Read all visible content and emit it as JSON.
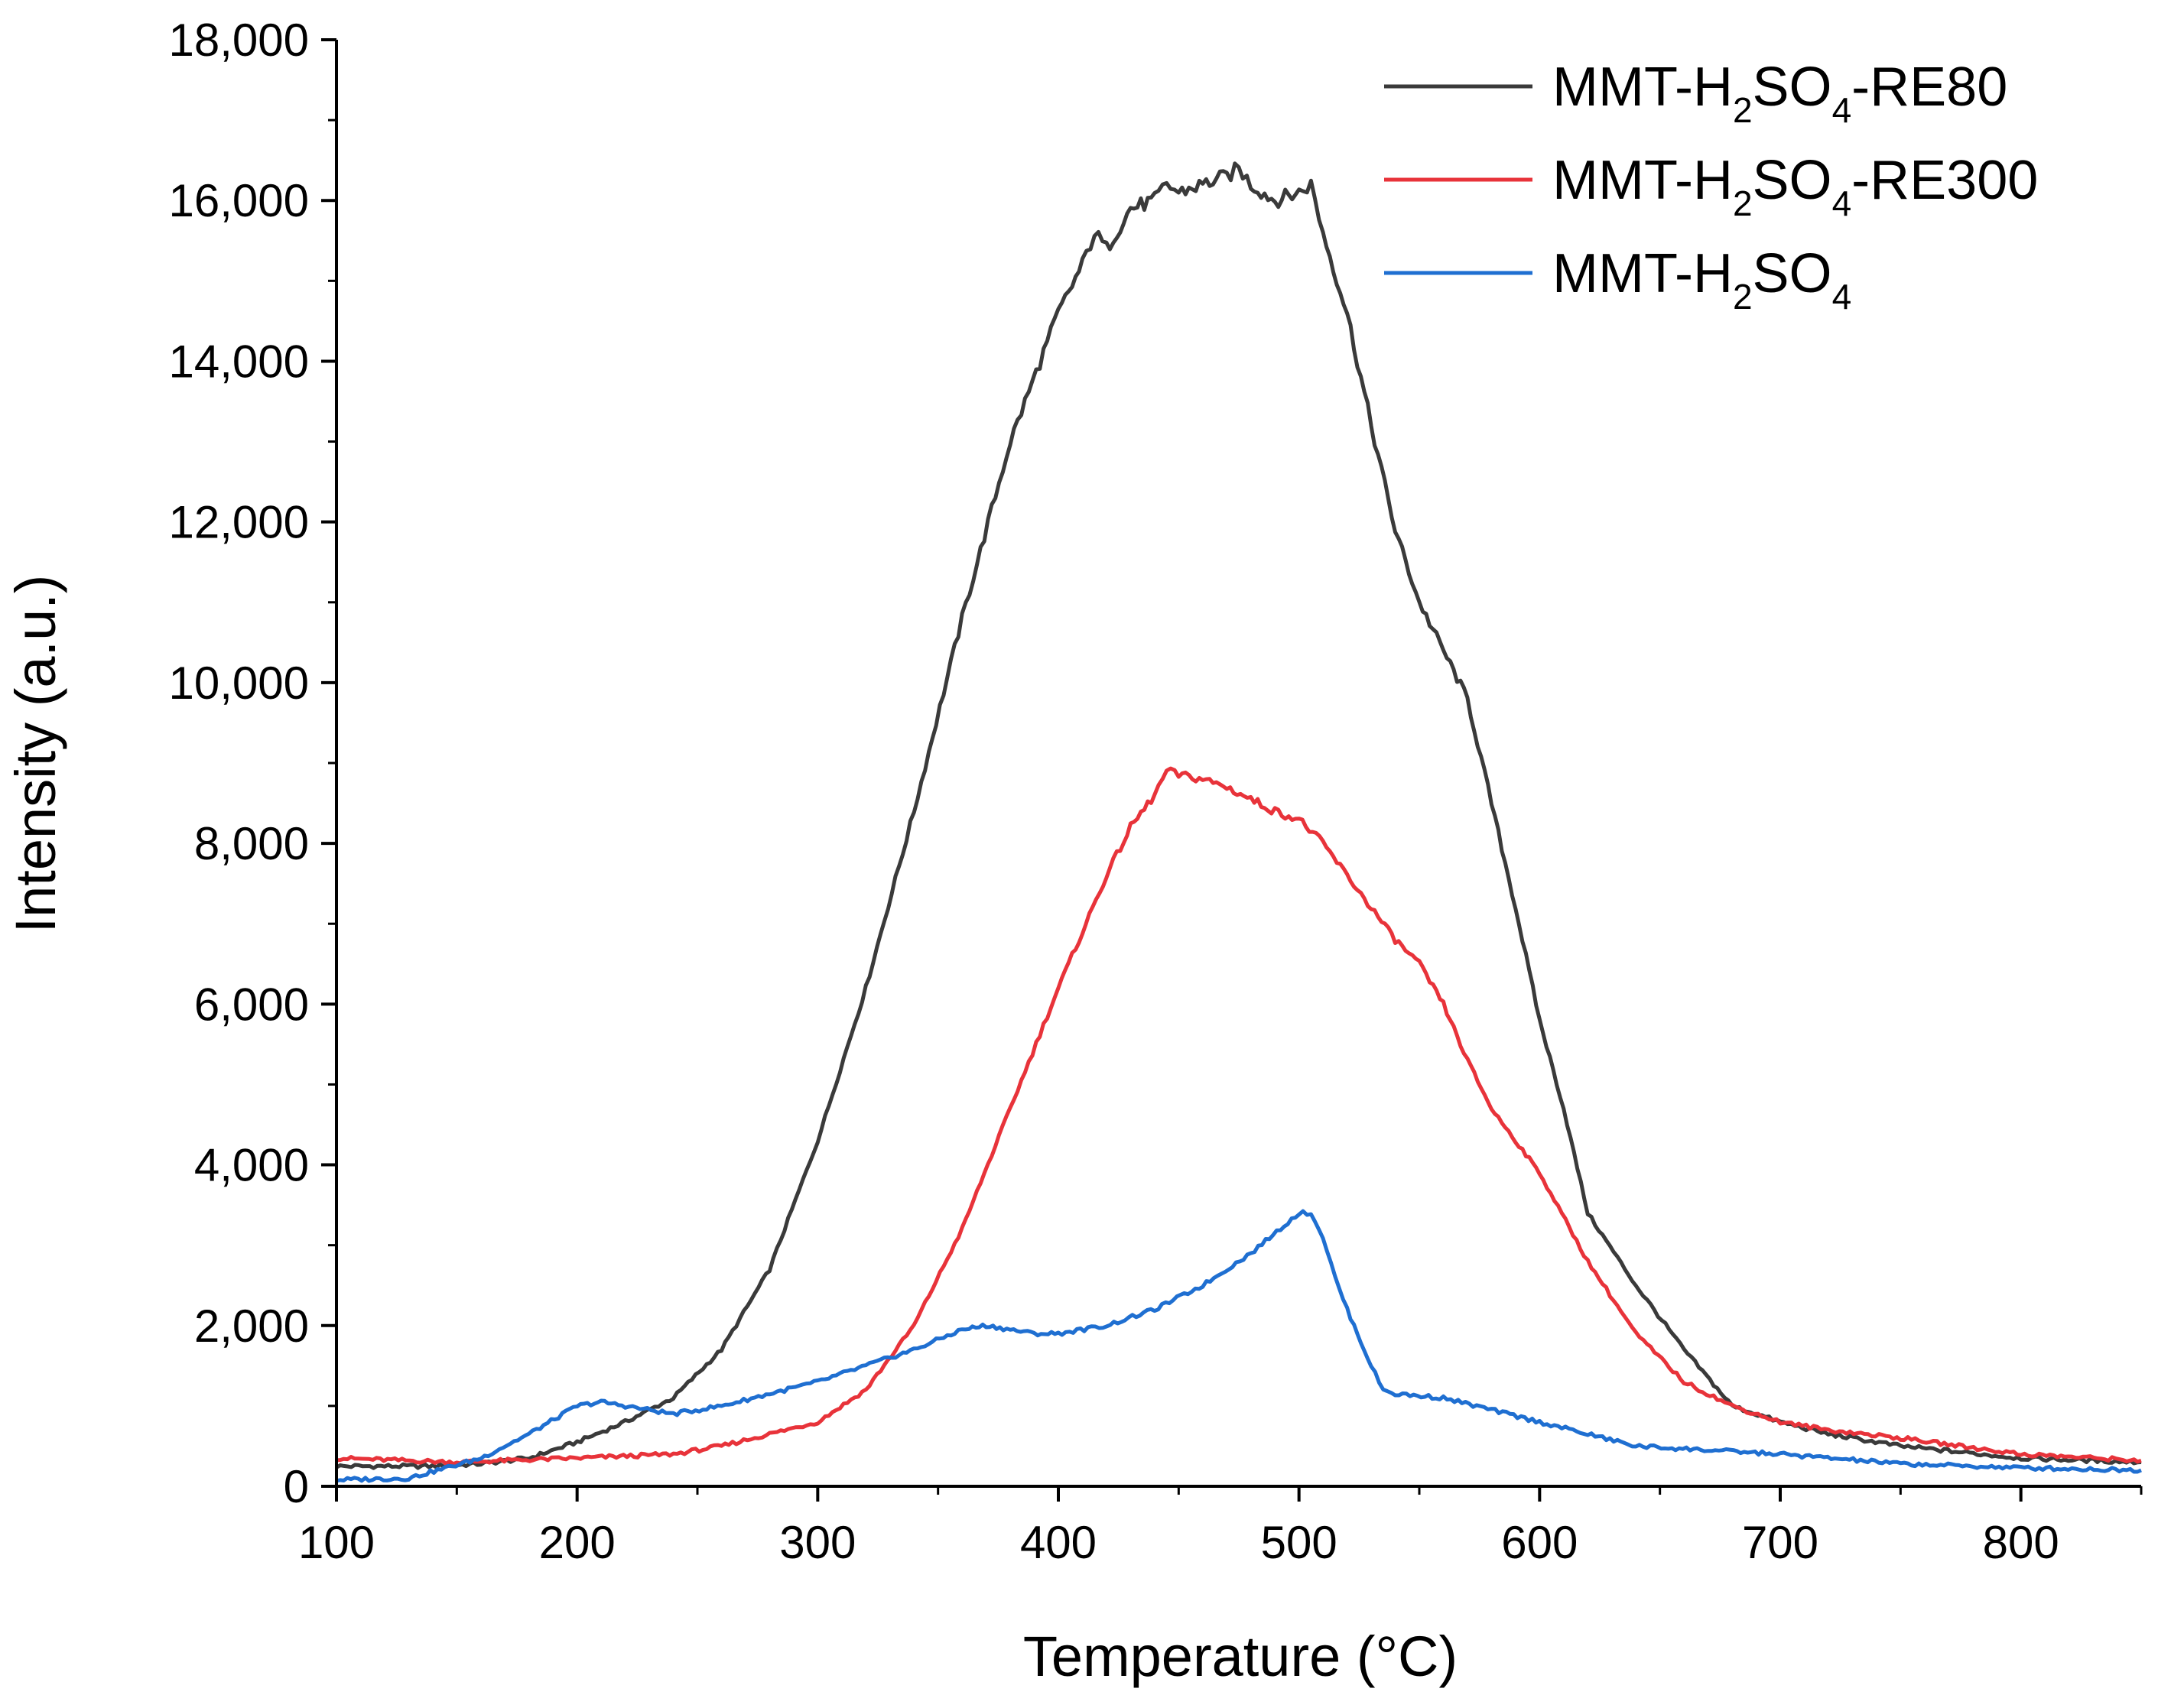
{
  "chart_data": {
    "type": "line",
    "title": "",
    "xlabel": "Temperature (°C)",
    "ylabel": "Intensity (a.u.)",
    "xlim": [
      100,
      850
    ],
    "ylim": [
      0,
      18000
    ],
    "x_ticks": [
      100,
      200,
      300,
      400,
      500,
      600,
      700,
      800
    ],
    "x_tick_labels": [
      "100",
      "200",
      "300",
      "400",
      "500",
      "600",
      "700",
      "800"
    ],
    "y_ticks": [
      0,
      2000,
      4000,
      6000,
      8000,
      10000,
      12000,
      14000,
      16000,
      18000
    ],
    "y_tick_labels": [
      "0",
      "2,000",
      "4,000",
      "6,000",
      "8,000",
      "10,000",
      "12,000",
      "14,000",
      "16,000",
      "18,000"
    ],
    "grid": false,
    "legend_position": "top-right",
    "colors": {
      "re80": "#3a3a3a",
      "re300": "#e8333a",
      "h2so4": "#1f6fd1",
      "axis": "#000000"
    },
    "series": [
      {
        "name": "MMT-H2SO4-RE80",
        "legend": {
          "p1": "MMT-H",
          "s1": "2",
          "p2": "SO",
          "s2": "4",
          "p3": "-RE80"
        },
        "x": [
          100,
          120,
          140,
          160,
          180,
          200,
          220,
          240,
          260,
          280,
          300,
          320,
          340,
          360,
          380,
          400,
          410,
          415,
          420,
          430,
          440,
          445,
          450,
          460,
          470,
          475,
          480,
          490,
          500,
          505,
          510,
          520,
          530,
          540,
          550,
          560,
          570,
          580,
          590,
          600,
          610,
          620,
          640,
          660,
          680,
          700,
          720,
          750,
          800,
          850
        ],
        "y": [
          250,
          250,
          250,
          280,
          350,
          550,
          800,
          1100,
          1700,
          2700,
          4300,
          6200,
          8400,
          10800,
          13000,
          14600,
          15200,
          15600,
          15400,
          15900,
          16000,
          16200,
          16100,
          16200,
          16300,
          16400,
          16200,
          16000,
          16100,
          16200,
          15600,
          14600,
          13200,
          11900,
          11000,
          10400,
          9800,
          8500,
          7200,
          5800,
          4700,
          3400,
          2500,
          1700,
          1000,
          800,
          650,
          500,
          350,
          300
        ]
      },
      {
        "name": "MMT-H2SO4-RE300",
        "legend": {
          "p1": "MMT-H",
          "s1": "2",
          "p2": "SO",
          "s2": "4",
          "p3": "-RE300"
        },
        "x": [
          100,
          150,
          200,
          240,
          260,
          280,
          300,
          320,
          340,
          360,
          380,
          400,
          410,
          420,
          430,
          440,
          445,
          450,
          460,
          470,
          480,
          490,
          500,
          510,
          520,
          530,
          540,
          550,
          560,
          570,
          580,
          590,
          600,
          620,
          640,
          660,
          680,
          700,
          720,
          750,
          800,
          850
        ],
        "y": [
          350,
          300,
          350,
          400,
          500,
          650,
          800,
          1200,
          2000,
          3200,
          4700,
          6200,
          6900,
          7600,
          8200,
          8600,
          8900,
          8850,
          8800,
          8700,
          8550,
          8400,
          8300,
          8000,
          7600,
          7200,
          6800,
          6500,
          6000,
          5300,
          4700,
          4300,
          3900,
          2800,
          1900,
          1300,
          1000,
          800,
          700,
          600,
          400,
          320
        ]
      },
      {
        "name": "MMT-H2SO4",
        "legend": {
          "p1": "MMT-H",
          "s1": "2",
          "p2": "SO",
          "s2": "4",
          "p3": ""
        },
        "x": [
          100,
          130,
          160,
          180,
          200,
          210,
          220,
          240,
          260,
          280,
          300,
          320,
          340,
          360,
          370,
          380,
          390,
          400,
          420,
          440,
          460,
          480,
          500,
          505,
          510,
          515,
          520,
          530,
          535,
          540,
          560,
          580,
          600,
          620,
          640,
          700,
          750,
          800,
          850
        ],
        "y": [
          80,
          100,
          350,
          650,
          1000,
          1050,
          1000,
          900,
          1000,
          1150,
          1300,
          1500,
          1700,
          1950,
          2000,
          1950,
          1900,
          1900,
          2000,
          2200,
          2500,
          2900,
          3400,
          3400,
          3100,
          2600,
          2200,
          1500,
          1200,
          1150,
          1100,
          950,
          800,
          650,
          500,
          400,
          280,
          230,
          200
        ]
      }
    ]
  }
}
